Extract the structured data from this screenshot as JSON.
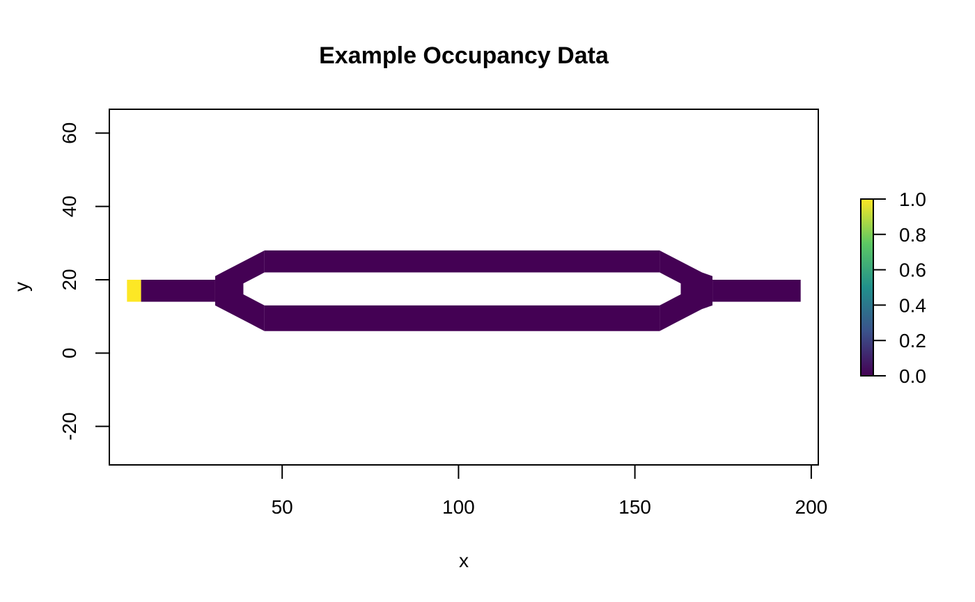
{
  "chart_data": {
    "type": "heatmap",
    "title": "Example Occupancy Data",
    "xlabel": "x",
    "ylabel": "y",
    "xlim": [
      1,
      202
    ],
    "ylim": [
      -30.5,
      66.5
    ],
    "x_ticks": [
      50,
      100,
      150,
      200
    ],
    "x_tick_labels": [
      "50",
      "100",
      "150",
      "200"
    ],
    "y_ticks": [
      -20,
      0,
      20,
      40,
      60
    ],
    "y_tick_labels": [
      "-20",
      "0",
      "20",
      "40",
      "60"
    ],
    "cell_size": 1,
    "color_scale": {
      "name": "viridis",
      "range": [
        0,
        1
      ],
      "ticks": [
        0,
        0.2,
        0.4,
        0.6,
        0.8,
        1
      ],
      "tick_labels": [
        "0.0",
        "0.2",
        "0.4",
        "0.6",
        "0.8",
        "1.0"
      ],
      "colors": [
        "#440154",
        "#3B528B",
        "#21908C",
        "#5DC863",
        "#FDE725"
      ]
    },
    "regions": [
      {
        "name": "inlet-cells",
        "x": [
          6,
          10
        ],
        "y": [
          14,
          20
        ],
        "value": 1.0
      },
      {
        "name": "inlet-channel",
        "x": [
          10,
          31
        ],
        "y": [
          14,
          20
        ],
        "value": 0.0
      },
      {
        "name": "upper-branch",
        "x": [
          45,
          157
        ],
        "y": [
          22,
          28
        ],
        "value": 0.0
      },
      {
        "name": "lower-branch",
        "x": [
          45,
          157
        ],
        "y": [
          6,
          13
        ],
        "value": 0.0
      },
      {
        "name": "outlet-channel",
        "x": [
          172,
          197
        ],
        "y": [
          14,
          20
        ],
        "value": 0.0
      }
    ],
    "left_junction": {
      "value": 0.0,
      "outer_x": [
        45,
        43,
        41,
        39,
        37,
        35,
        33,
        31,
        31,
        33,
        35,
        37,
        39,
        41,
        43,
        45
      ],
      "outer_y": [
        28,
        27,
        26,
        25,
        24,
        23,
        22,
        21,
        13,
        12,
        11,
        10,
        9,
        8,
        7,
        6
      ],
      "inner_x": [
        45,
        43,
        41,
        39,
        39,
        41,
        43,
        45
      ],
      "inner_y": [
        22,
        21,
        20,
        19,
        16,
        15,
        14,
        13
      ]
    },
    "right_junction": {
      "value": 0.0,
      "outer_x": [
        157,
        159,
        161,
        163,
        165,
        167,
        169,
        172,
        172,
        169,
        167,
        165,
        163,
        161,
        159,
        157
      ],
      "outer_y": [
        28,
        27,
        26,
        25,
        24,
        23,
        22,
        21,
        13,
        12,
        11,
        10,
        9,
        8,
        7,
        6
      ],
      "inner_x": [
        157,
        159,
        161,
        163,
        163,
        161,
        159,
        157
      ],
      "inner_y": [
        22,
        21,
        20,
        19,
        16,
        15,
        14,
        13
      ]
    },
    "grid": false,
    "legend_placement": "right"
  }
}
